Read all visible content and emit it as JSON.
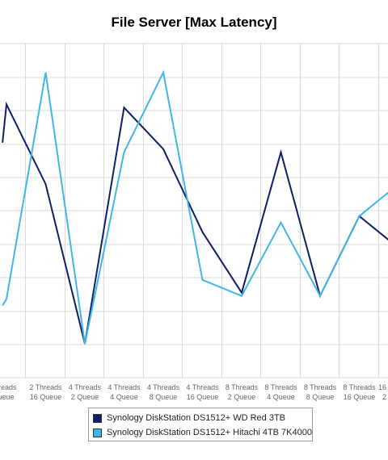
{
  "colors": {
    "series_1": "#0d1f6b",
    "series_2": "#3fb6e8",
    "grid": "#d9d9d9",
    "tick_text": "#666666"
  },
  "chart_data": {
    "type": "line",
    "title": "File Server [Max Latency]",
    "xlabel": "",
    "ylabel": "",
    "grid": true,
    "legend_position": "bottom",
    "categories": [
      [
        "",
        ""
      ],
      [
        "2 Threads",
        "16 Queue"
      ],
      [
        "4 Threads",
        "2 Queue"
      ],
      [
        "4 Threads",
        "4 Queue"
      ],
      [
        "4 Threads",
        "8 Queue"
      ],
      [
        "4 Threads",
        "16 Queue"
      ],
      [
        "8 Threads",
        "2 Queue"
      ],
      [
        "8 Threads",
        "4 Queue"
      ],
      [
        "8 Threads",
        "8 Queue"
      ],
      [
        "8 Threads",
        "16 Queue"
      ],
      [
        "16",
        "2"
      ]
    ],
    "visible_category_labels": [
      [
        "Threads",
        "Queue"
      ],
      [
        "2 Threads",
        "16 Queue"
      ],
      [
        "4 Threads",
        "2 Queue"
      ],
      [
        "4 Threads",
        "4 Queue"
      ],
      [
        "4 Threads",
        "8 Queue"
      ],
      [
        "4 Threads",
        "16 Queue"
      ],
      [
        "8 Threads",
        "2 Queue"
      ],
      [
        "8 Threads",
        "4 Queue"
      ],
      [
        "8 Threads",
        "8 Queue"
      ],
      [
        "8 Threads",
        "16 Queue"
      ],
      [
        "16",
        "2"
      ]
    ],
    "ylim": [
      0,
      9
    ],
    "series": [
      {
        "name": "Synology DiskStation DS1512+ WD Red 3TB",
        "x": [
          -0.1,
          0,
          1,
          2,
          3,
          4,
          5,
          6,
          7,
          8,
          9,
          9.8
        ],
        "values": [
          6.3,
          7.5,
          5.0,
          0.0,
          7.4,
          6.1,
          3.5,
          1.6,
          6.0,
          1.5,
          4.0,
          3.2
        ]
      },
      {
        "name": "Synology DiskStation DS1512+ Hitachi 4TB 7K4000",
        "x": [
          -0.1,
          0,
          1,
          2,
          3,
          4,
          5,
          6,
          7,
          8,
          9,
          9.8
        ],
        "values": [
          1.2,
          1.4,
          8.5,
          0.0,
          6.0,
          8.5,
          2.0,
          1.5,
          3.8,
          1.5,
          4.0,
          4.8
        ]
      }
    ]
  },
  "legend": [
    "Synology DiskStation DS1512+ WD Red 3TB",
    "Synology DiskStation DS1512+ Hitachi 4TB 7K4000"
  ]
}
